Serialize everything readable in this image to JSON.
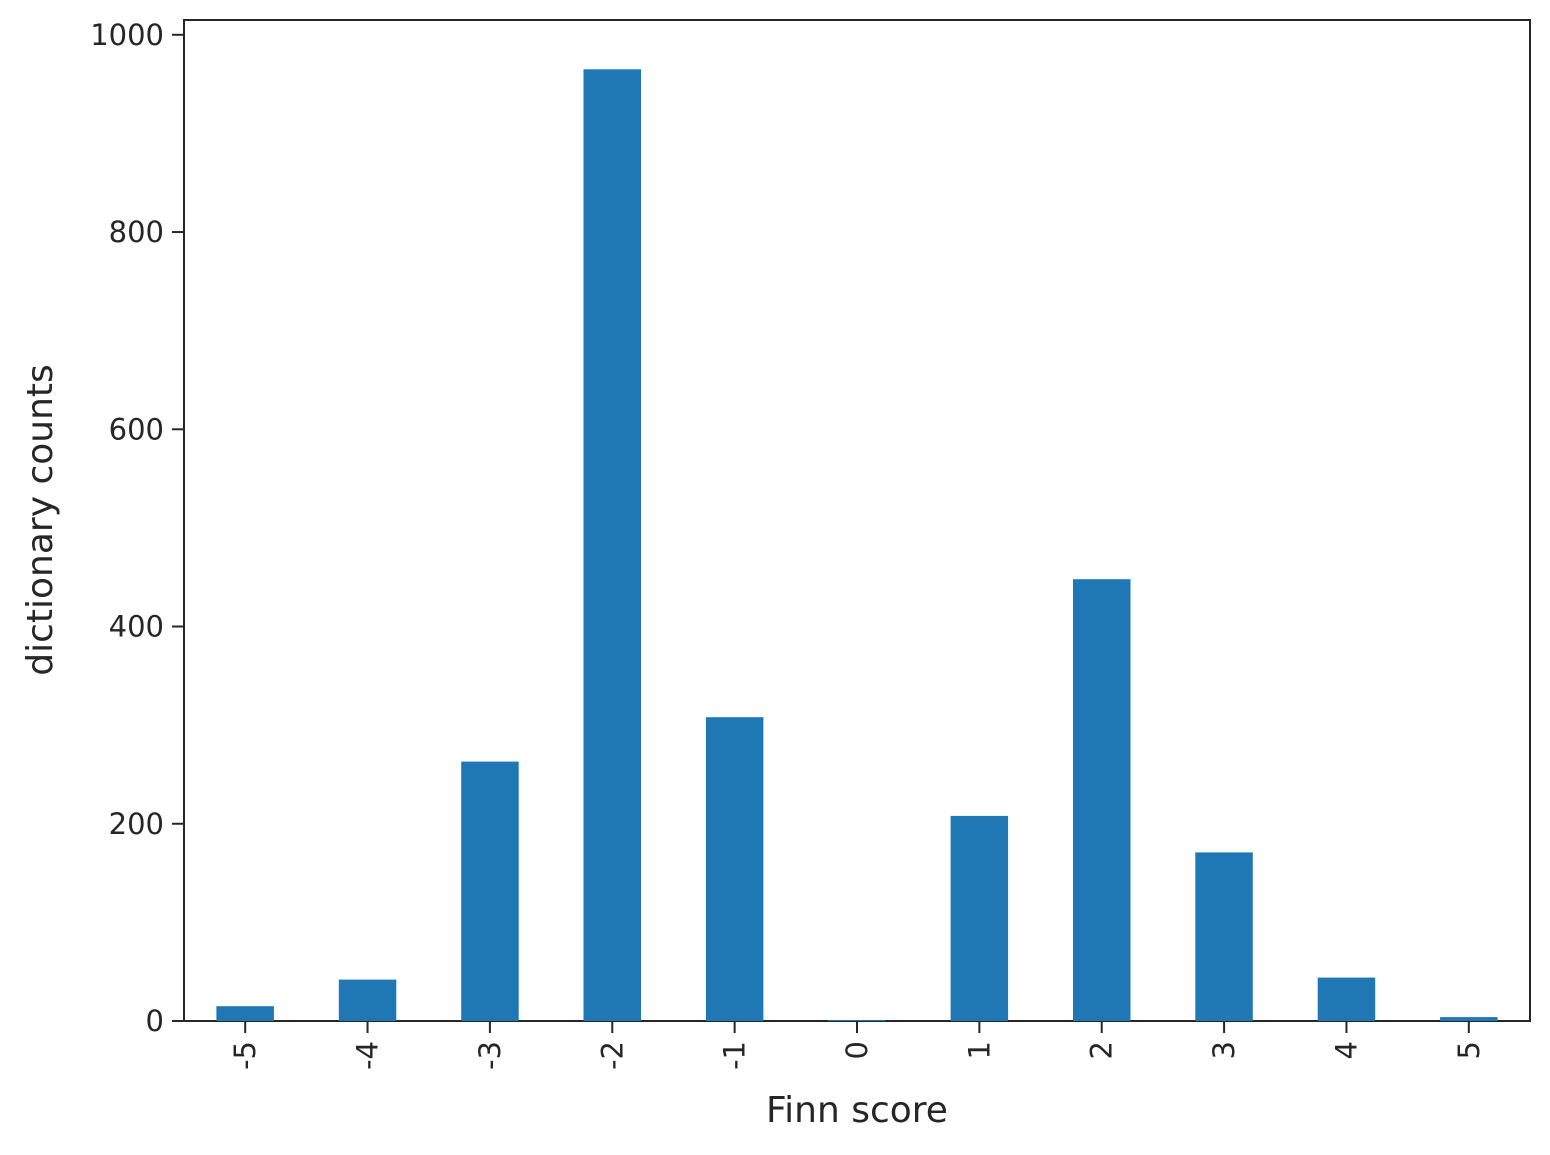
{
  "chart_data": {
    "type": "bar",
    "categories": [
      "-5",
      "-4",
      "-3",
      "-2",
      "-1",
      "0",
      "1",
      "2",
      "3",
      "4",
      "5"
    ],
    "values": [
      15,
      42,
      263,
      965,
      308,
      1,
      208,
      448,
      171,
      44,
      4
    ],
    "title": "",
    "xlabel": "Finn score",
    "ylabel": "dictionary counts",
    "ylim": [
      0,
      1015
    ],
    "yticks": [
      0,
      200,
      400,
      600,
      800,
      1000
    ],
    "grid": false,
    "legend": "none",
    "colors": {
      "bar": "#1f77b4",
      "axis": "#262626",
      "background": "#ffffff"
    }
  }
}
